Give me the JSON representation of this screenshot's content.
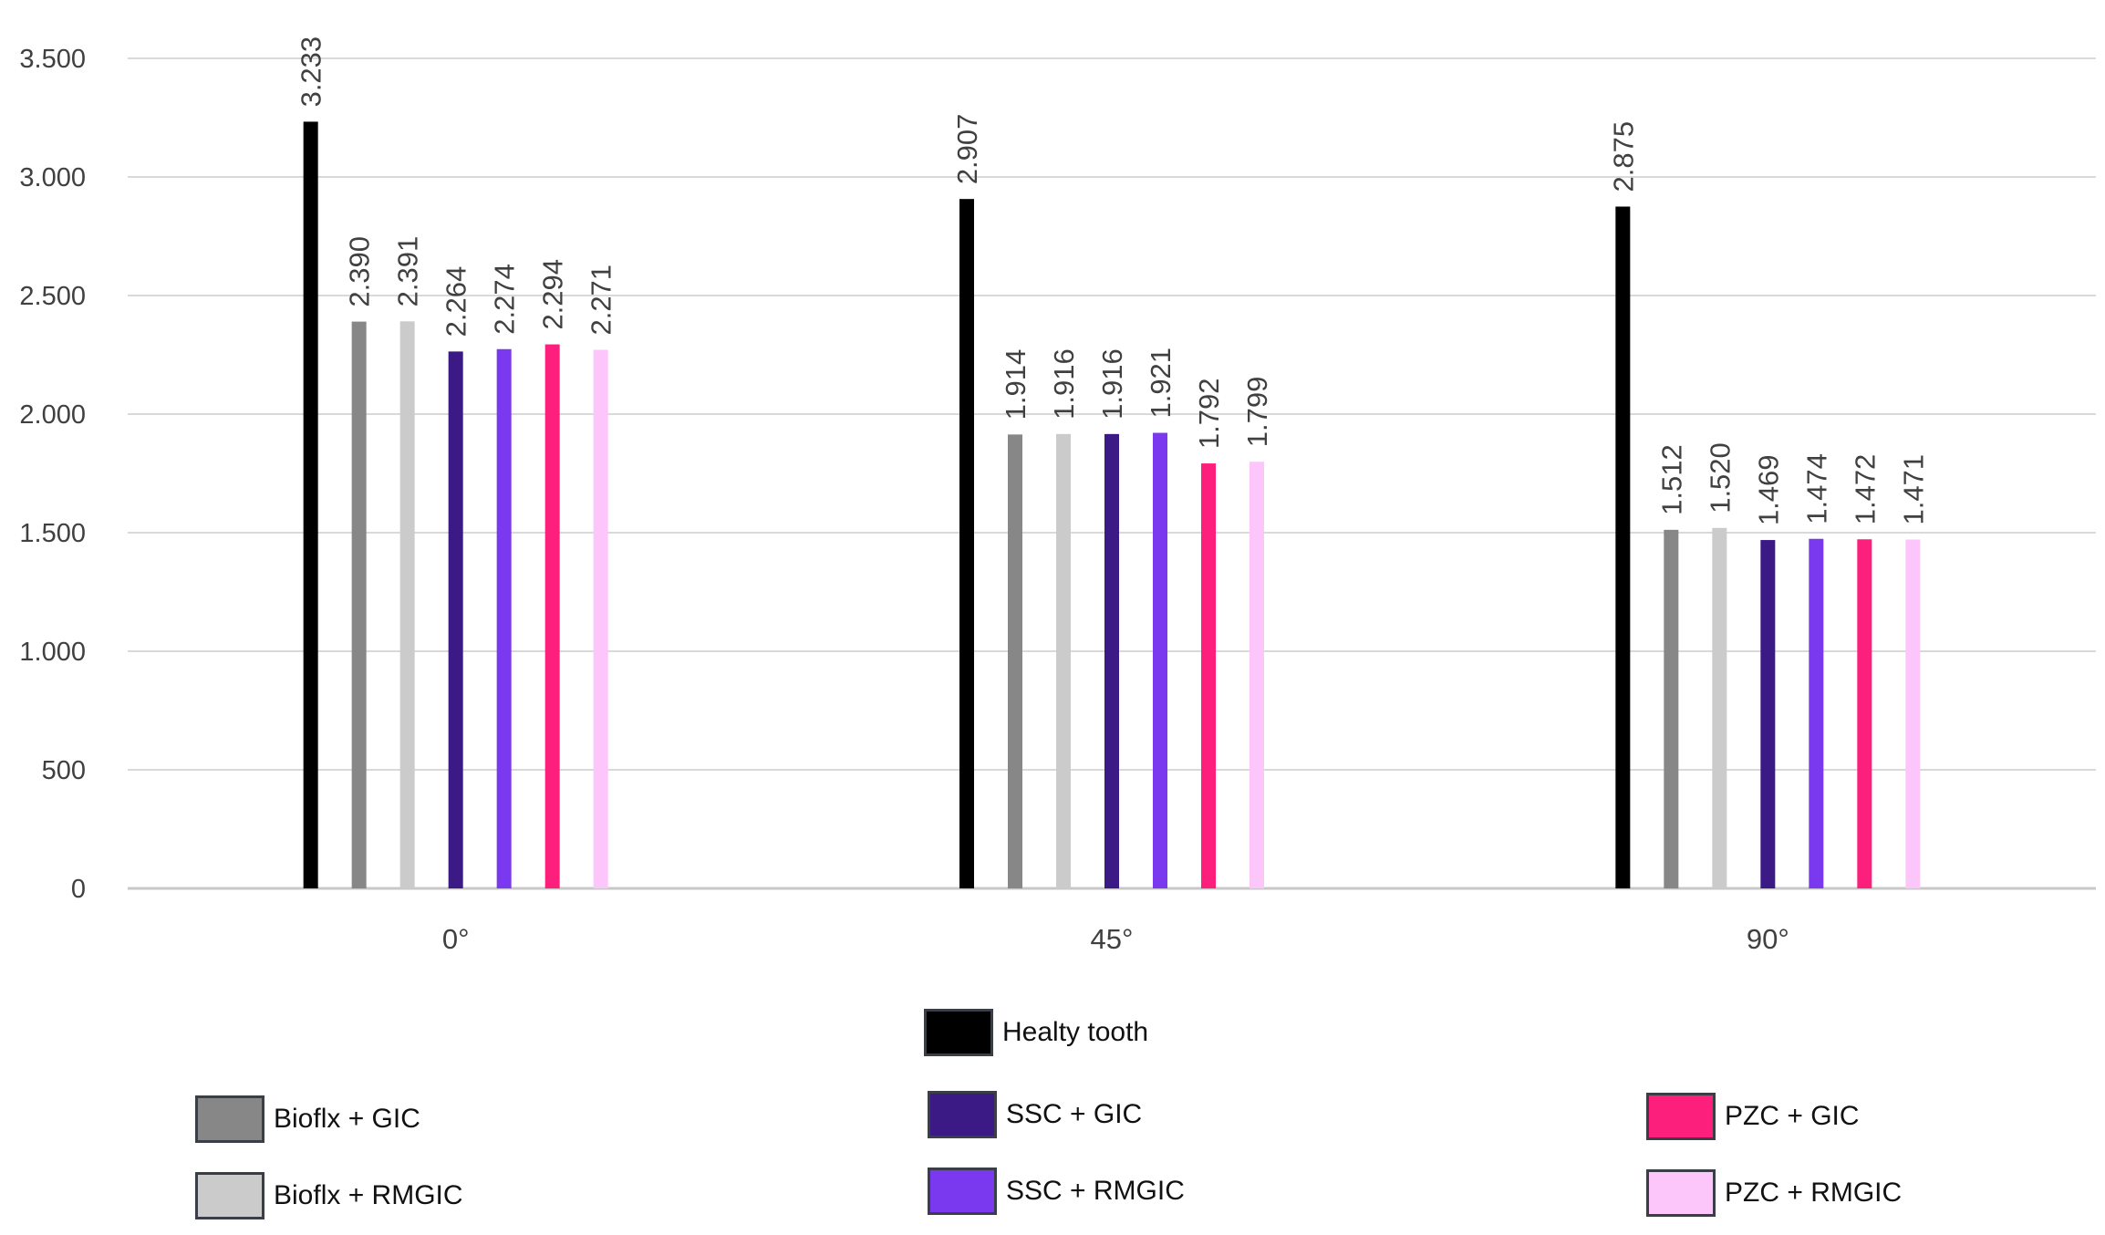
{
  "chart_data": {
    "type": "bar",
    "categories": [
      "0°",
      "45°",
      "90°"
    ],
    "series": [
      {
        "name": "Healty tooth",
        "color": "#000000",
        "values": [
          3233,
          2907,
          2875
        ],
        "labels": [
          "3.233",
          "2.907",
          "2.875"
        ]
      },
      {
        "name": "Bioflx + GIC",
        "color": "#878787",
        "values": [
          2390,
          1914,
          1512
        ],
        "labels": [
          "2.390",
          "1.914",
          "1.512"
        ]
      },
      {
        "name": "Bioflx + RMGIC",
        "color": "#cbcbcb",
        "values": [
          2391,
          1916,
          1520
        ],
        "labels": [
          "2.391",
          "1.916",
          "1.520"
        ]
      },
      {
        "name": "SSC + GIC",
        "color": "#3c1a86",
        "values": [
          2264,
          1916,
          1469
        ],
        "labels": [
          "2.264",
          "1.916",
          "1.469"
        ]
      },
      {
        "name": "SSC + RMGIC",
        "color": "#7b39ef",
        "values": [
          2274,
          1921,
          1474
        ],
        "labels": [
          "2.274",
          "1.921",
          "1.474"
        ]
      },
      {
        "name": "PZC + GIC",
        "color": "#fc1f7b",
        "values": [
          2294,
          1792,
          1472
        ],
        "labels": [
          "2.294",
          "1.792",
          "1.472"
        ]
      },
      {
        "name": "PZC + RMGIC",
        "color": "#fdc6fb",
        "values": [
          2271,
          1799,
          1471
        ],
        "labels": [
          "2.271",
          "1.799",
          "1.471"
        ]
      }
    ],
    "yticks": [
      0,
      500,
      1000,
      1500,
      2000,
      2500,
      3000,
      3500
    ],
    "ytick_labels": [
      "0",
      "500",
      "1.000",
      "1.500",
      "2.000",
      "2.500",
      "3.000",
      "3.500"
    ],
    "ylim": [
      0,
      3500
    ],
    "grid": true,
    "legend_position": "bottom",
    "title": "",
    "xlabel": "",
    "ylabel": ""
  },
  "legend": {
    "healty_tooth": "Healty tooth",
    "bioflx_gic": "Bioflx + GIC",
    "bioflx_rmgic": "Bioflx + RMGIC",
    "ssc_gic": "SSC + GIC",
    "ssc_rmgic": "SSC + RMGIC",
    "pzc_gic": "PZC + GIC",
    "pzc_rmgic": "PZC + RMGIC"
  },
  "colors": {
    "healty_tooth": "#000000",
    "bioflx_gic": "#878787",
    "bioflx_rmgic": "#cbcbcb",
    "ssc_gic": "#3c1a86",
    "ssc_rmgic": "#7b39ef",
    "pzc_gic": "#fc1f7b",
    "pzc_rmgic": "#fdc6fb"
  }
}
